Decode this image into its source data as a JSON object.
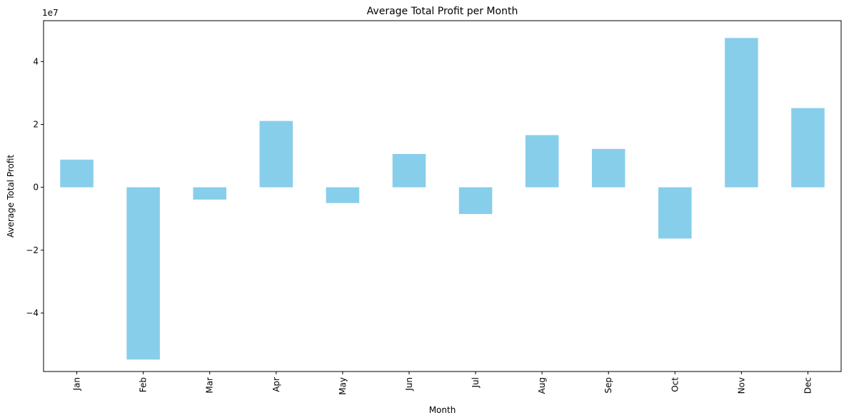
{
  "chart_data": {
    "type": "bar",
    "title": "Average Total Profit per Month",
    "xlabel": "Month",
    "ylabel": "Average Total Profit",
    "y_offset_label": "1e7",
    "categories": [
      "Jan",
      "Feb",
      "Mar",
      "Apr",
      "May",
      "Jun",
      "Jul",
      "Aug",
      "Sep",
      "Oct",
      "Nov",
      "Dec"
    ],
    "values": [
      8800000,
      -54800000,
      -3900000,
      21100000,
      -5000000,
      10600000,
      -8500000,
      16600000,
      12200000,
      -16300000,
      47500000,
      25200000
    ],
    "ylim": [
      -58600000,
      53000000
    ],
    "yticks": [
      -40000000,
      -20000000,
      0,
      20000000,
      40000000
    ],
    "ytick_labels": [
      "−4",
      "−2",
      "0",
      "2",
      "4"
    ],
    "bar_color": "#87ceeb",
    "grid": false,
    "legend": "none"
  }
}
